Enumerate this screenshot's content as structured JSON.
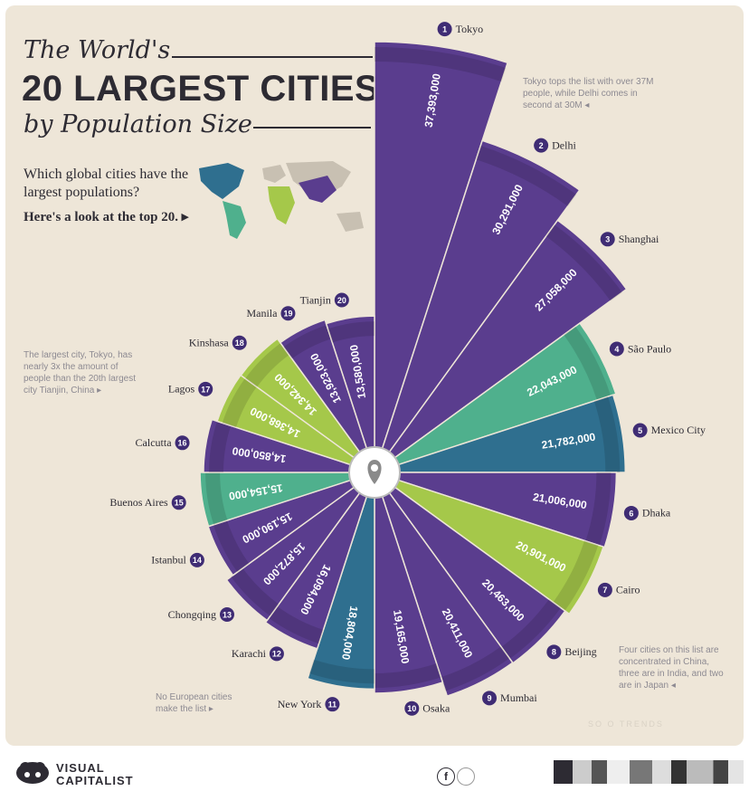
{
  "header": {
    "title_line1": "The World's",
    "title_line2": "20 LARGEST CITIES",
    "title_line3": "by Population Size",
    "question": "Which global cities have the largest populations?",
    "lookahead": "Here's a look at the top 20. ▸"
  },
  "notes": {
    "tokyo_delhi": "Tokyo tops the list with over 37M people, while Delhi comes in second at 30M ◂",
    "tokyo_tianjin": "The largest city, Tokyo, has nearly 3x the amount of people than the 20th largest city Tianjin, China ▸",
    "china_india_japan": "Four cities on this list are concentrated in China, three are in India, and two are in Japan ◂",
    "europe": "No European cities make the list ▸",
    "source": "SO          O TRENDS"
  },
  "footer": {
    "brand_line1": "VISUAL",
    "brand_line2": "CAPITALIST",
    "social_icon": "f"
  },
  "colors": {
    "purple": "#5a3d8e",
    "purple_dark": "#3f2c74",
    "green": "#a5c84a",
    "teal": "#4fb08d",
    "blue": "#2f6f8f",
    "paper": "#eee6d8",
    "ink": "#2d2b33"
  },
  "chart_data": {
    "type": "radial-bar",
    "title": "20 LARGEST CITIES",
    "ranks": [
      "1",
      "2",
      "3",
      "4",
      "5",
      "6",
      "7",
      "8",
      "9",
      "10",
      "11",
      "12",
      "13",
      "14",
      "15",
      "16",
      "17",
      "18",
      "19",
      "20"
    ],
    "cities": [
      "Tokyo",
      "Delhi",
      "Shanghai",
      "São Paulo",
      "Mexico City",
      "Dhaka",
      "Cairo",
      "Beijing",
      "Mumbai",
      "Osaka",
      "New York",
      "Karachi",
      "Chongqing",
      "Istanbul",
      "Buenos Aires",
      "Calcutta",
      "Lagos",
      "Kinshasa",
      "Manila",
      "Tianjin"
    ],
    "values": [
      37393000,
      30291000,
      27058000,
      22043000,
      21782000,
      21006000,
      20901000,
      20463000,
      20411000,
      19165000,
      18804000,
      16094000,
      15872000,
      15190000,
      15154000,
      14850000,
      14368000,
      14342000,
      13923000,
      13580000
    ],
    "value_labels": [
      "37,393,000",
      "30,291,000",
      "27,058,000",
      "22,043,000",
      "21,782,000",
      "21,006,000",
      "20,901,000",
      "20,463,000",
      "20,411,000",
      "19,165,000",
      "18,804,000",
      "16,094,000",
      "15,872,000",
      "15,190,000",
      "15,154,000",
      "14,850,000",
      "14,368,000",
      "14,342,000",
      "13,923,000",
      "13,580,000"
    ],
    "continents": [
      "asia",
      "asia",
      "asia",
      "south-america",
      "north-america",
      "asia",
      "africa",
      "asia",
      "asia",
      "asia",
      "north-america",
      "asia",
      "asia",
      "asia",
      "south-america",
      "asia",
      "africa",
      "africa",
      "asia",
      "asia"
    ]
  }
}
